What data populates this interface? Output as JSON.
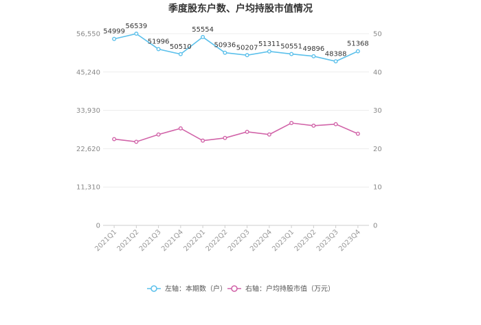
{
  "chart_data": {
    "type": "line",
    "title": "季度股东户数、户均持股市值情况",
    "categories": [
      "2021Q1",
      "2021Q2",
      "2021Q3",
      "2021Q4",
      "2022Q1",
      "2022Q2",
      "2022Q3",
      "2022Q4",
      "2023Q1",
      "2023Q2",
      "2023Q3",
      "2023Q4"
    ],
    "left_axis": {
      "range": [
        0,
        56550
      ],
      "ticks": [
        0,
        11310,
        22620,
        33930,
        45240,
        56550
      ],
      "tick_labels": [
        "0",
        "11,310",
        "22,620",
        "33,930",
        "45,240",
        "56,550"
      ]
    },
    "right_axis": {
      "range": [
        0,
        50
      ],
      "ticks": [
        0,
        10,
        20,
        30,
        40,
        50
      ],
      "tick_labels": [
        "0",
        "10",
        "20",
        "30",
        "40",
        "50"
      ]
    },
    "series": [
      {
        "name": "左轴：本期数（户）",
        "axis": "left",
        "color": "#5bc0eb",
        "values": [
          54999,
          56539,
          51996,
          50510,
          55554,
          50936,
          50207,
          51311,
          50551,
          49896,
          48388,
          51368
        ],
        "labels": [
          "54999",
          "56539",
          "51996",
          "50510",
          "55554",
          "50936",
          "50207",
          "51311",
          "50551",
          "49896",
          "48388",
          "51368"
        ]
      },
      {
        "name": "右轴：户均持股市值（万元）",
        "axis": "right",
        "color": "#d163a8",
        "values": [
          22.5,
          21.8,
          23.7,
          25.3,
          22.1,
          22.8,
          24.4,
          23.7,
          26.7,
          26.0,
          26.4,
          23.9
        ]
      }
    ],
    "grid": true,
    "legend_position": "bottom"
  }
}
